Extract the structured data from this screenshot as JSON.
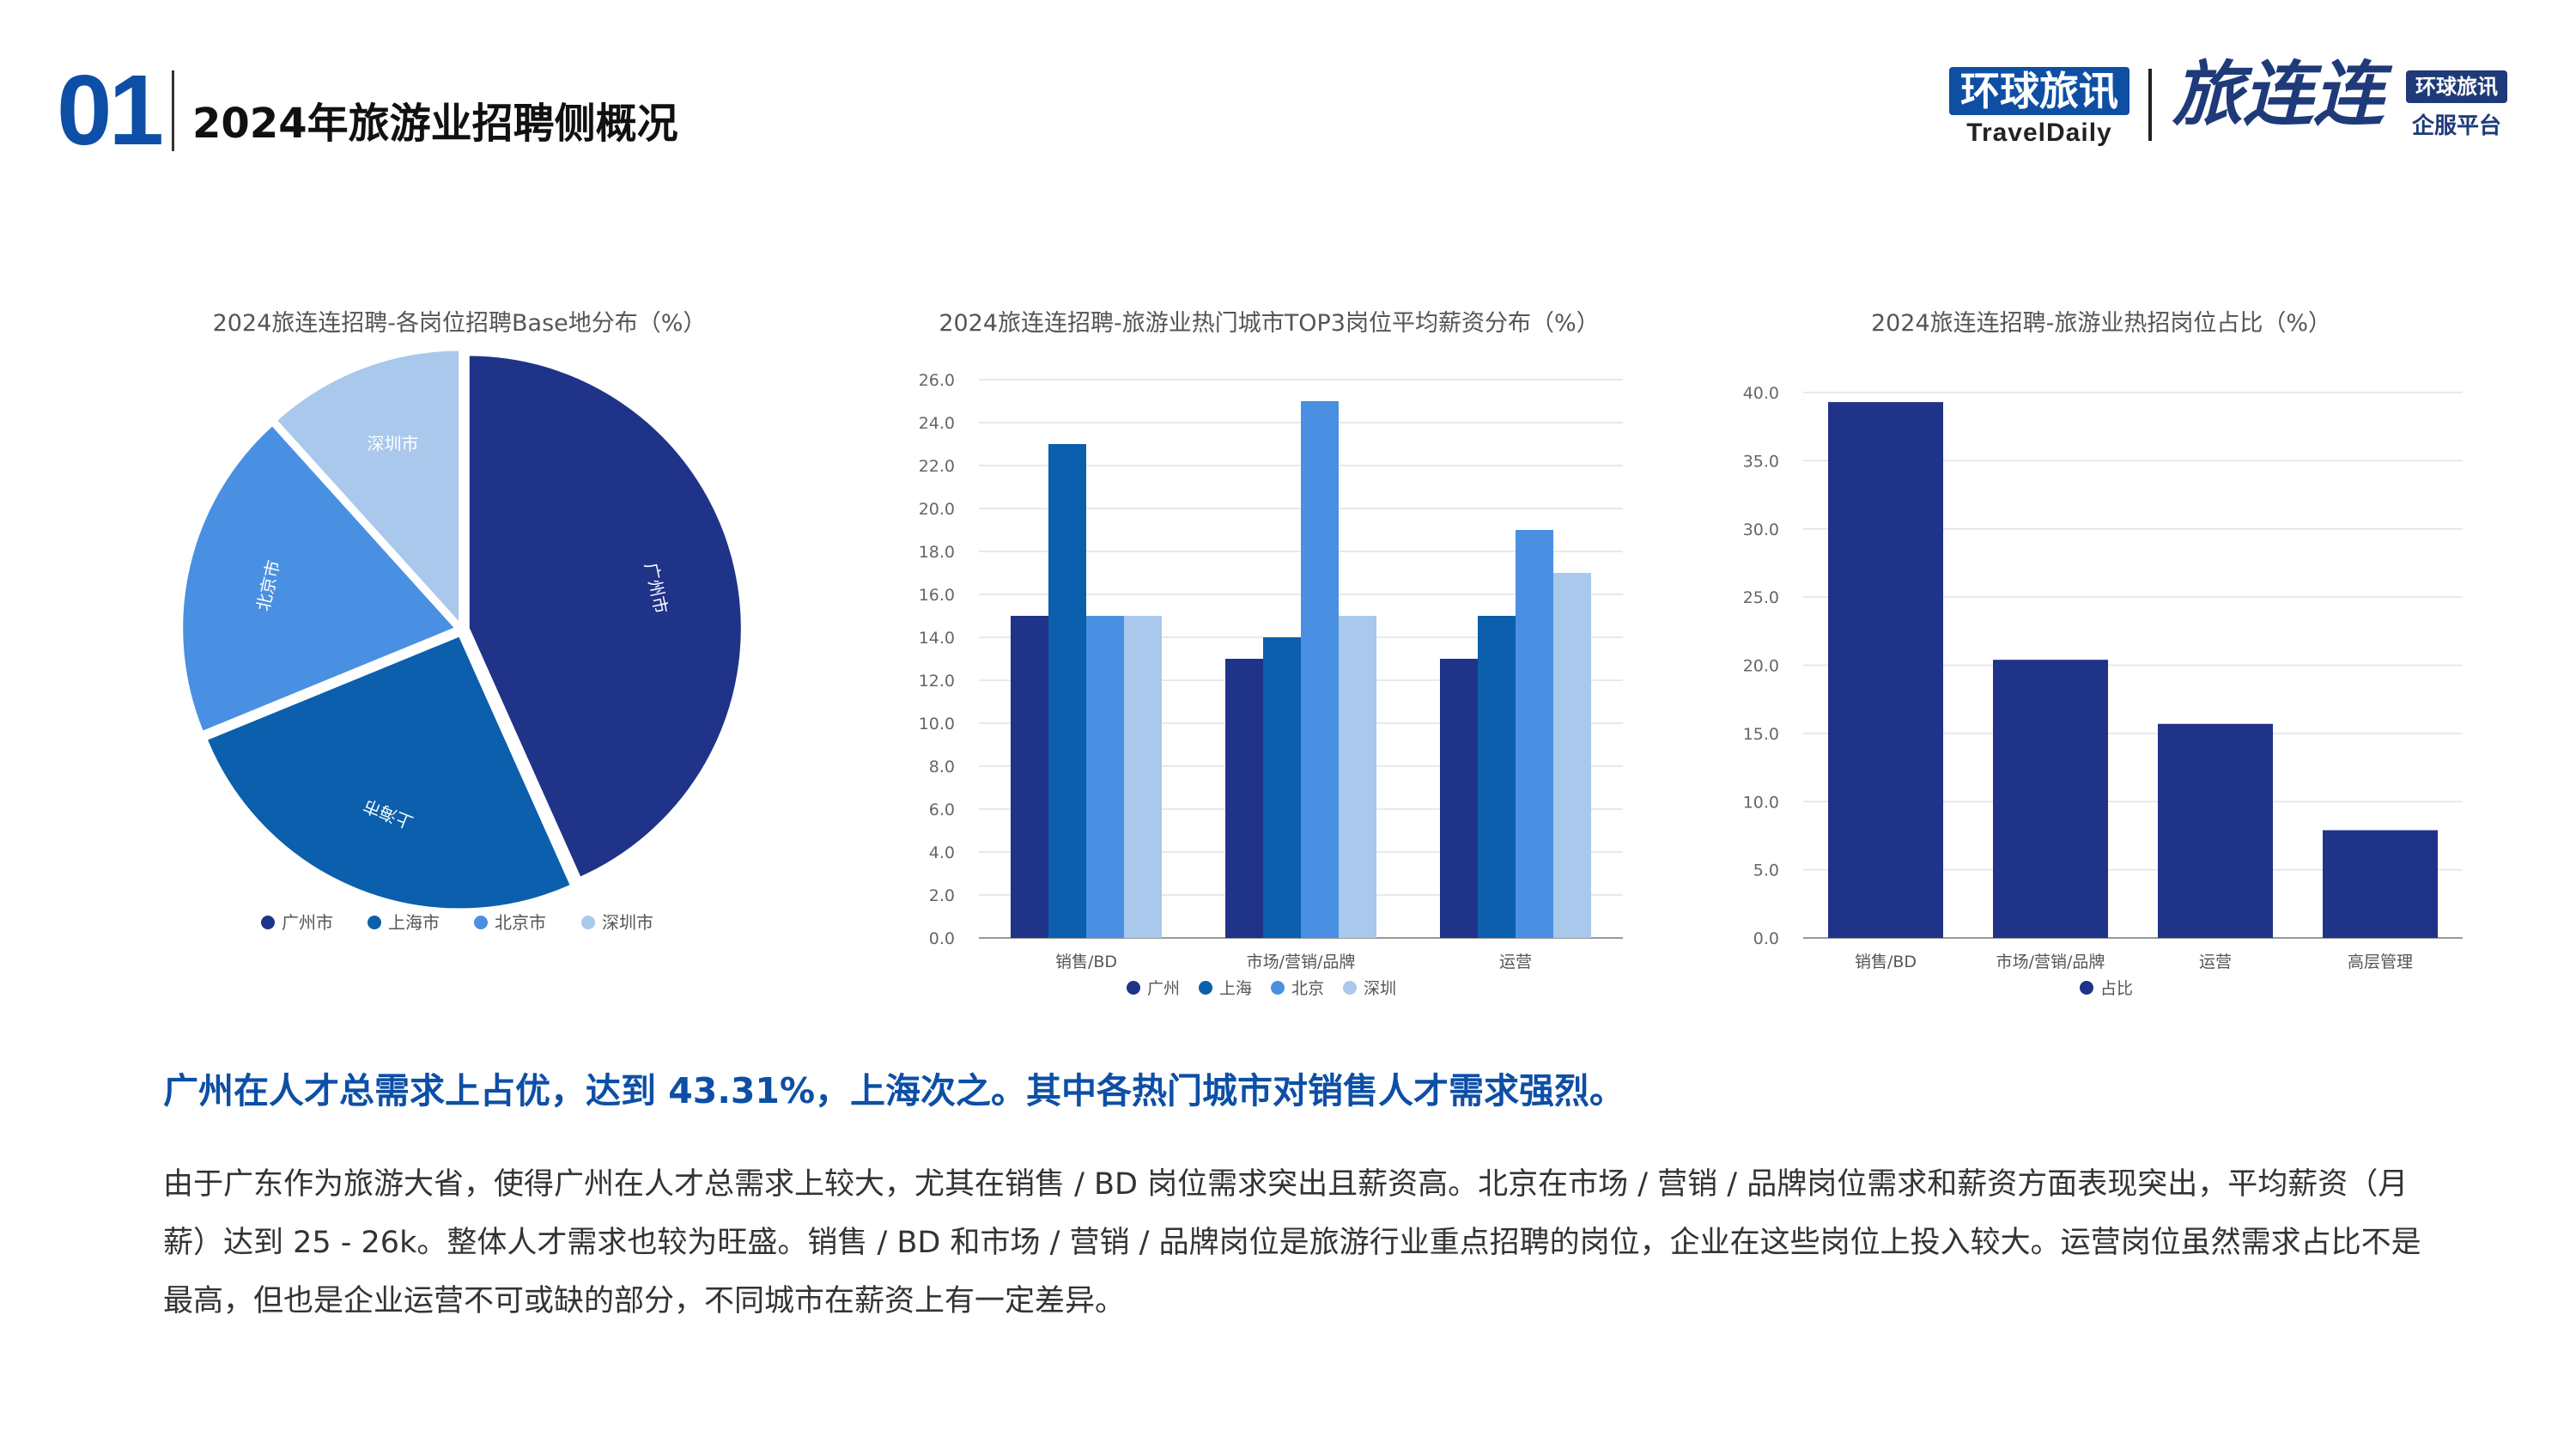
{
  "header": {
    "section_number": "01",
    "title": "2024年旅游业招聘侧概况"
  },
  "logo": {
    "cn": "环球旅讯",
    "en": "TravelDaily",
    "brand": "旅连连",
    "tag_top": "环球旅讯",
    "tag_bottom": "企服平台"
  },
  "colors": {
    "dark_navy": "#1f3388",
    "mid_blue": "#0b5fac",
    "light_blue": "#4a90e2",
    "pale_blue": "#a9c8ec",
    "headline_blue": "#0d4fa6"
  },
  "chart_data": [
    {
      "type": "pie",
      "title": "2024旅连连招聘-各岗位招聘Base地分布（%）",
      "categories": [
        "广州市",
        "上海市",
        "北京市",
        "深圳市"
      ],
      "values": [
        43.31,
        25.5,
        19.5,
        11.69
      ],
      "legend_position": "bottom"
    },
    {
      "type": "bar",
      "title": "2024旅连连招聘-旅游业热门城市TOP3岗位平均薪资分布（%）",
      "categories": [
        "销售/BD",
        "市场/营销/品牌",
        "运营"
      ],
      "series": [
        {
          "name": "广州",
          "values": [
            15,
            13,
            13
          ]
        },
        {
          "name": "上海",
          "values": [
            23,
            14,
            15
          ]
        },
        {
          "name": "北京",
          "values": [
            15,
            25,
            19
          ]
        },
        {
          "name": "深圳",
          "values": [
            15,
            15,
            17
          ]
        }
      ],
      "ylim": [
        0,
        26
      ],
      "yticks": [
        "0.0",
        "2.0",
        "4.0",
        "6.0",
        "8.0",
        "10.0",
        "12.0",
        "14.0",
        "16.0",
        "18.0",
        "20.0",
        "22.0",
        "24.0",
        "26.0"
      ],
      "grid": true,
      "legend_position": "bottom"
    },
    {
      "type": "bar",
      "title": "2024旅连连招聘-旅游业热招岗位占比（%）",
      "categories": [
        "销售/BD",
        "市场/营销/品牌",
        "运营",
        "高层管理"
      ],
      "series": [
        {
          "name": "占比",
          "values": [
            39.3,
            20.4,
            15.7,
            7.9
          ]
        }
      ],
      "ylim": [
        0,
        40
      ],
      "yticks": [
        "0.0",
        "5.0",
        "10.0",
        "15.0",
        "20.0",
        "25.0",
        "30.0",
        "35.0",
        "40.0"
      ],
      "grid": true,
      "legend_position": "bottom"
    }
  ],
  "headline": "广州在人才总需求上占优，达到 43.31%，上海次之。其中各热门城市对销售人才需求强烈。",
  "body": "由于广东作为旅游大省，使得广州在人才总需求上较大，尤其在销售 / BD 岗位需求突出且薪资高。北京在市场 / 营销 / 品牌岗位需求和薪资方面表现突出，平均薪资（月薪）达到 25 - 26k。整体人才需求也较为旺盛。销售 / BD 和市场 / 营销 / 品牌岗位是旅游行业重点招聘的岗位，企业在这些岗位上投入较大。运营岗位虽然需求占比不是最高，但也是企业运营不可或缺的部分，不同城市在薪资上有一定差异。"
}
